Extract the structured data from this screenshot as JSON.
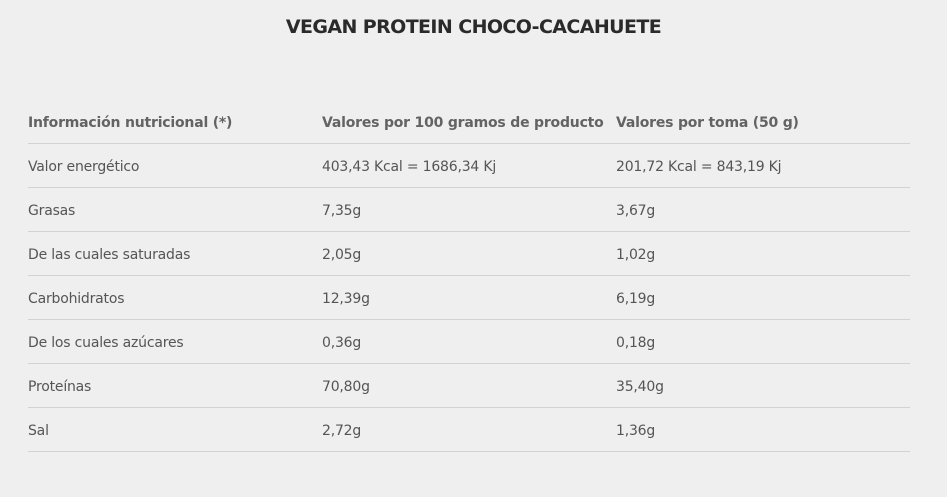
{
  "title": "VEGAN PROTEIN CHOCO-CACAHUETE",
  "table": {
    "headers": [
      "Información nutricional (*)",
      "Valores por 100 gramos de producto",
      "Valores por toma (50 g)"
    ],
    "rows": [
      [
        "Valor energético",
        "403,43 Kcal = 1686,34 Kj",
        "201,72 Kcal = 843,19 Kj"
      ],
      [
        "Grasas",
        "7,35g",
        "3,67g"
      ],
      [
        "De las cuales saturadas",
        "2,05g",
        "1,02g"
      ],
      [
        "Carbohidratos",
        "12,39g",
        "6,19g"
      ],
      [
        "De los cuales azúcares",
        "0,36g",
        "0,18g"
      ],
      [
        "Proteínas",
        "70,80g",
        "35,40g"
      ],
      [
        "Sal",
        "2,72g",
        "1,36g"
      ]
    ]
  }
}
